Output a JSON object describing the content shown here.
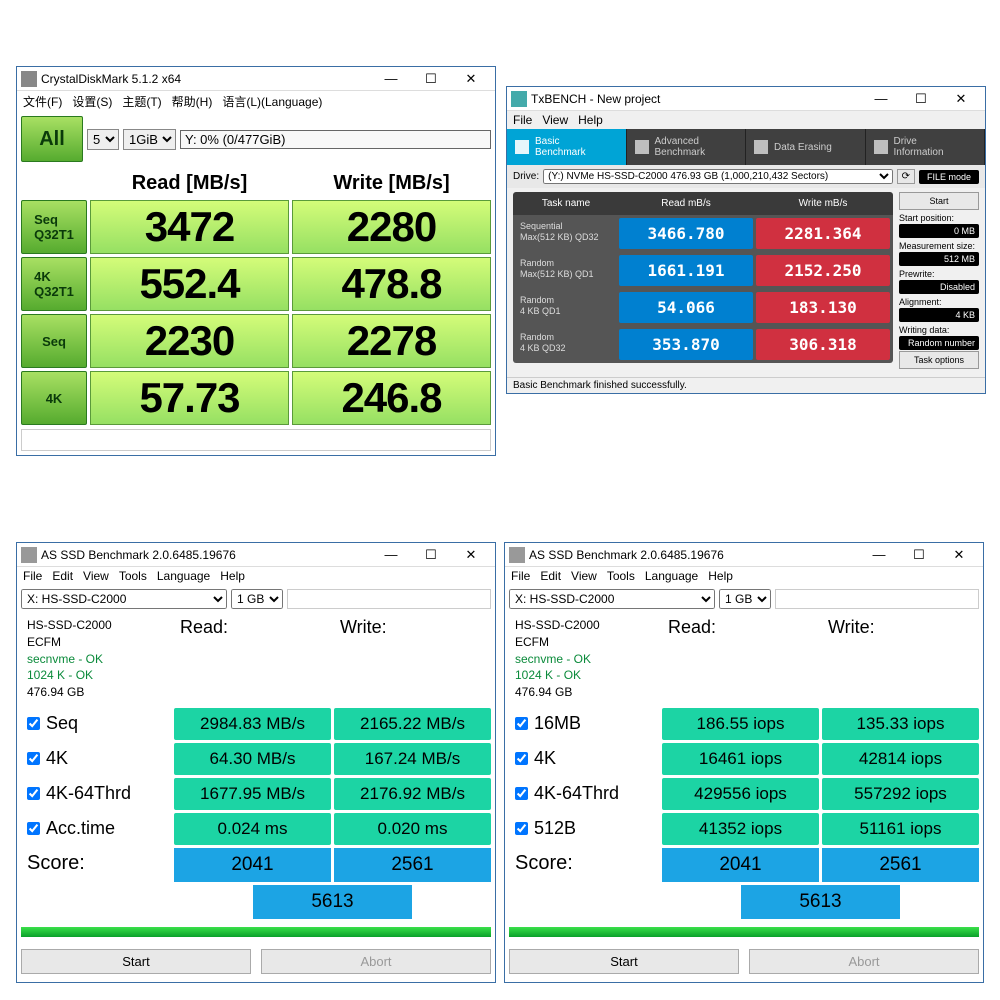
{
  "cdm": {
    "title": "CrystalDiskMark 5.1.2 x64",
    "menu": [
      "文件(F)",
      "设置(S)",
      "主题(T)",
      "帮助(H)",
      "语言(L)(Language)"
    ],
    "runs": "5",
    "size": "1GiB",
    "drive": "Y: 0% (0/477GiB)",
    "hdr_read": "Read [MB/s]",
    "hdr_write": "Write [MB/s]",
    "btn_all": "All",
    "rows": [
      {
        "label": "Seq\nQ32T1",
        "read": "3472",
        "write": "2280"
      },
      {
        "label": "4K\nQ32T1",
        "read": "552.4",
        "write": "478.8"
      },
      {
        "label": "Seq",
        "read": "2230",
        "write": "2278"
      },
      {
        "label": "4K",
        "read": "57.73",
        "write": "246.8"
      }
    ]
  },
  "txb": {
    "title": "TxBENCH - New project",
    "menu": [
      "File",
      "View",
      "Help"
    ],
    "tabs": [
      "Basic\nBenchmark",
      "Advanced\nBenchmark",
      "Data Erasing",
      "Drive\nInformation"
    ],
    "drive_label": "Drive:",
    "drive": "(Y:) NVMe HS-SSD-C2000  476.93 GB (1,000,210,432 Sectors)",
    "file_btn": "FILE mode",
    "hdr": [
      "Task name",
      "Read mB/s",
      "Write mB/s"
    ],
    "rows": [
      {
        "name": "Sequential\nMax(512 KB) QD32",
        "read": "3466.780",
        "write": "2281.364"
      },
      {
        "name": "Random\nMax(512 KB) QD1",
        "read": "1661.191",
        "write": "2152.250"
      },
      {
        "name": "Random\n4 KB QD1",
        "read": "54.066",
        "write": "183.130"
      },
      {
        "name": "Random\n4 KB QD32",
        "read": "353.870",
        "write": "306.318"
      }
    ],
    "side": {
      "start": "Start",
      "start_pos_l": "Start position:",
      "start_pos_v": "0 MB",
      "meas_l": "Measurement size:",
      "meas_v": "512 MB",
      "pre_l": "Prewrite:",
      "pre_v": "Disabled",
      "align_l": "Alignment:",
      "align_v": "4 KB",
      "wd_l": "Writing data:",
      "wd_v": "Random number",
      "task_opt": "Task options"
    },
    "status": "Basic Benchmark finished successfully."
  },
  "as1": {
    "title": "AS SSD Benchmark 2.0.6485.19676",
    "menu": [
      "File",
      "Edit",
      "View",
      "Tools",
      "Language",
      "Help"
    ],
    "drv": "X: HS-SSD-C2000",
    "size": "1 GB",
    "info": {
      "model": "HS-SSD-C2000",
      "fw": "ECFM",
      "l1": "secnvme - OK",
      "l2": "1024 K - OK",
      "cap": "476.94 GB"
    },
    "hdr_r": "Read:",
    "hdr_w": "Write:",
    "rows": [
      {
        "l": "Seq",
        "r": "2984.83 MB/s",
        "w": "2165.22 MB/s"
      },
      {
        "l": "4K",
        "r": "64.30 MB/s",
        "w": "167.24 MB/s"
      },
      {
        "l": "4K-64Thrd",
        "r": "1677.95 MB/s",
        "w": "2176.92 MB/s"
      },
      {
        "l": "Acc.time",
        "r": "0.024 ms",
        "w": "0.020 ms"
      }
    ],
    "score_l": "Score:",
    "score_r": "2041",
    "score_w": "2561",
    "score_t": "5613",
    "start": "Start",
    "abort": "Abort"
  },
  "as2": {
    "title": "AS SSD Benchmark 2.0.6485.19676",
    "menu": [
      "File",
      "Edit",
      "View",
      "Tools",
      "Language",
      "Help"
    ],
    "drv": "X: HS-SSD-C2000",
    "size": "1 GB",
    "info": {
      "model": "HS-SSD-C2000",
      "fw": "ECFM",
      "l1": "secnvme - OK",
      "l2": "1024 K - OK",
      "cap": "476.94 GB"
    },
    "hdr_r": "Read:",
    "hdr_w": "Write:",
    "rows": [
      {
        "l": "16MB",
        "r": "186.55 iops",
        "w": "135.33 iops"
      },
      {
        "l": "4K",
        "r": "16461 iops",
        "w": "42814 iops"
      },
      {
        "l": "4K-64Thrd",
        "r": "429556 iops",
        "w": "557292 iops"
      },
      {
        "l": "512B",
        "r": "41352 iops",
        "w": "51161 iops"
      }
    ],
    "score_l": "Score:",
    "score_r": "2041",
    "score_w": "2561",
    "score_t": "5613",
    "start": "Start",
    "abort": "Abort"
  }
}
